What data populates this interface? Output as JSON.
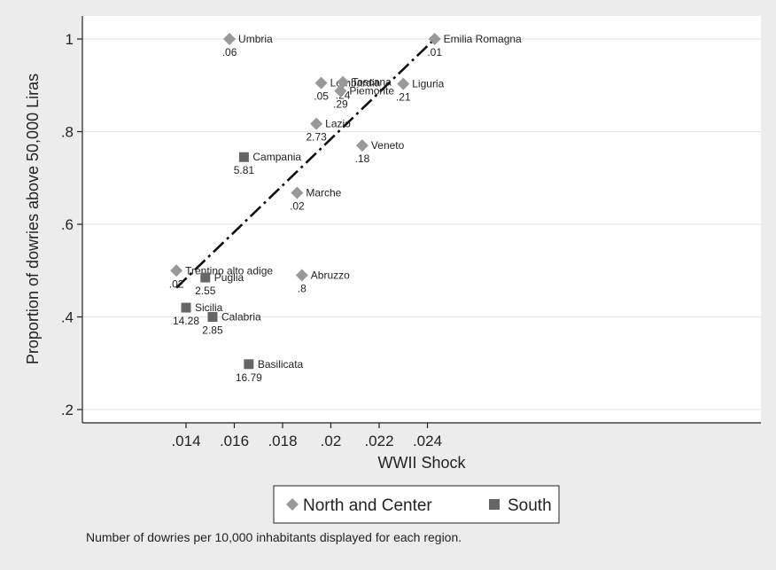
{
  "chart_data": {
    "type": "scatter",
    "xlabel": "WWII Shock",
    "ylabel": "Proportion of dowries above 50,000 Liras",
    "xlim": [
      0.012,
      0.026
    ],
    "ylim": [
      0.18,
      1.04
    ],
    "xticks": [
      0.014,
      0.016,
      0.018,
      0.02,
      0.022,
      0.024
    ],
    "xtick_labels": [
      ".014",
      ".016",
      ".018",
      ".02",
      ".022",
      ".024"
    ],
    "yticks": [
      0.2,
      0.4,
      0.6,
      0.8,
      1.0
    ],
    "ytick_labels": [
      ".2",
      ".4",
      ".6",
      ".8",
      "1"
    ],
    "grid": "horizontal",
    "series": [
      {
        "name": "North and Center",
        "marker": "diamond",
        "color": "#999999",
        "points": [
          {
            "region": "Umbria",
            "x": 0.0158,
            "y": 1.0,
            "count": ".06"
          },
          {
            "region": "Emilia  Romagna",
            "x": 0.0243,
            "y": 1.0,
            "count": ".01"
          },
          {
            "region": "Lombardia",
            "x": 0.0196,
            "y": 0.905,
            "count": ".05"
          },
          {
            "region": "Toscana",
            "x": 0.0205,
            "y": 0.907,
            "count": ".24"
          },
          {
            "region": "Piemonte",
            "x": 0.0204,
            "y": 0.888,
            "count": ".29"
          },
          {
            "region": "Liguria",
            "x": 0.023,
            "y": 0.903,
            "count": ".21"
          },
          {
            "region": "Lazio",
            "x": 0.0194,
            "y": 0.817,
            "count": "2.73"
          },
          {
            "region": "Veneto",
            "x": 0.0213,
            "y": 0.77,
            "count": ".18"
          },
          {
            "region": "Marche",
            "x": 0.0186,
            "y": 0.668,
            "count": ".02"
          },
          {
            "region": "Trentino  alto adige",
            "x": 0.0136,
            "y": 0.5,
            "count": ".02"
          },
          {
            "region": "Abruzzo",
            "x": 0.0188,
            "y": 0.49,
            "count": ".8"
          }
        ]
      },
      {
        "name": "South",
        "marker": "square",
        "color": "#666666",
        "points": [
          {
            "region": "Campania",
            "x": 0.0164,
            "y": 0.745,
            "count": "5.81"
          },
          {
            "region": "Puglia",
            "x": 0.0148,
            "y": 0.485,
            "count": "2.55"
          },
          {
            "region": "Sicilia",
            "x": 0.014,
            "y": 0.42,
            "count": "14.28"
          },
          {
            "region": "Calabria",
            "x": 0.0151,
            "y": 0.4,
            "count": "2.85"
          },
          {
            "region": "Basilicata",
            "x": 0.0166,
            "y": 0.298,
            "count": "16.79"
          }
        ]
      }
    ],
    "fit_line": {
      "x": [
        0.0136,
        0.0243
      ],
      "y": [
        0.463,
        1.0
      ],
      "style": "dash-dot"
    },
    "legend": {
      "placement": "bottom-center",
      "entries": [
        "North and Center",
        "South"
      ]
    },
    "note": "Number of dowries per 10,000 inhabitants displayed for each region."
  }
}
